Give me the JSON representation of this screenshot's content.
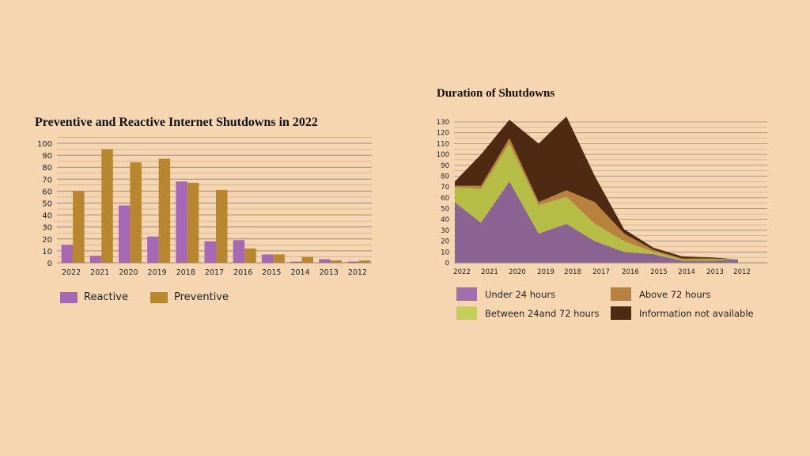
{
  "chart_data": [
    {
      "type": "bar",
      "title": "Preventive and Reactive Internet Shutdowns in 2022",
      "categories": [
        "2022",
        "2021",
        "2020",
        "2019",
        "2018",
        "2017",
        "2016",
        "2015",
        "2014",
        "2013",
        "2012"
      ],
      "series": [
        {
          "name": "Reactive",
          "color": "#a468b4",
          "values": [
            15,
            6,
            48,
            22,
            68,
            18,
            19,
            7,
            1,
            3,
            1
          ]
        },
        {
          "name": "Preventive",
          "color": "#b8862e",
          "values": [
            60,
            95,
            84,
            87,
            67,
            61,
            12,
            7,
            5,
            2,
            2
          ]
        }
      ],
      "ylim": [
        0,
        100
      ],
      "yticks": [
        0,
        10,
        20,
        30,
        40,
        50,
        60,
        70,
        80,
        90,
        100
      ],
      "grid": true,
      "legend": "bottom"
    },
    {
      "type": "area",
      "stacked": true,
      "title": "Duration of Shutdowns",
      "categories": [
        "2022",
        "2021",
        "2020",
        "2019",
        "2018",
        "2017",
        "2016",
        "2015",
        "2014",
        "2013",
        "2012"
      ],
      "series": [
        {
          "name": "Under 24 hours",
          "color": "#8a6393",
          "values": [
            56,
            37,
            75,
            27,
            36,
            20,
            10,
            8,
            2,
            2,
            3
          ]
        },
        {
          "name": "Between 24and 72 hours",
          "color": "#b5bd45",
          "values": [
            14,
            31,
            35,
            26,
            25,
            16,
            10,
            2,
            1,
            1,
            0
          ]
        },
        {
          "name": "Above 72 hours",
          "color": "#b8823c",
          "values": [
            1,
            3,
            5,
            3,
            6,
            20,
            7,
            2,
            1,
            1,
            0
          ]
        },
        {
          "name": "Information not available",
          "color": "#4e2a12",
          "values": [
            4,
            29,
            17,
            54,
            68,
            24,
            4,
            2,
            2,
            1,
            0
          ]
        }
      ],
      "ylim": [
        0,
        130
      ],
      "yticks": [
        0,
        10,
        20,
        30,
        40,
        50,
        60,
        70,
        80,
        90,
        100,
        110,
        120,
        130
      ],
      "grid": true,
      "legend": "bottom"
    }
  ]
}
